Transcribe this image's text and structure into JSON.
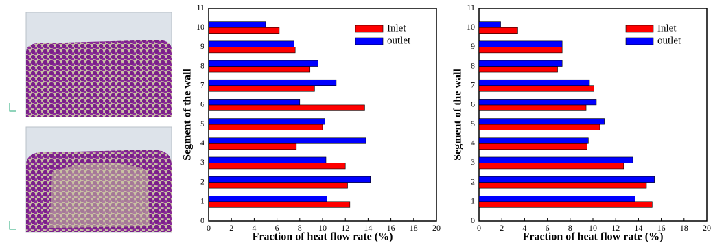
{
  "chart_data": [
    {
      "type": "bar",
      "orientation": "horizontal",
      "x_label": "Fraction of heat flow rate (%)",
      "y_label": "Segment of the wall",
      "y": [
        1,
        2,
        3,
        4,
        5,
        6,
        7,
        8,
        9,
        10
      ],
      "series": [
        {
          "name": "Inlet",
          "color": "#ff0000",
          "values": [
            12.4,
            12.2,
            12.0,
            7.7,
            10.0,
            13.7,
            9.3,
            8.9,
            7.6,
            6.2
          ]
        },
        {
          "name": "outlet",
          "color": "#0000ff",
          "values": [
            10.4,
            14.2,
            10.3,
            13.8,
            10.2,
            8.0,
            11.2,
            9.6,
            7.5,
            5.0
          ]
        }
      ],
      "xlim": [
        0,
        20
      ],
      "xticks": [
        0,
        2,
        4,
        6,
        8,
        10,
        12,
        14,
        16,
        18,
        20
      ],
      "ylim": [
        0,
        11
      ],
      "yticks": [
        0,
        1,
        2,
        3,
        4,
        5,
        6,
        7,
        8,
        9,
        10,
        11
      ],
      "legend": "upper right",
      "grid": false
    },
    {
      "type": "bar",
      "orientation": "horizontal",
      "x_label": "Fraction of heat flow rate (%)",
      "y_label": "Segment of the wall",
      "y": [
        1,
        2,
        3,
        4,
        5,
        6,
        7,
        8,
        9,
        10
      ],
      "series": [
        {
          "name": "Inlet",
          "color": "#ff0000",
          "values": [
            15.2,
            14.7,
            12.7,
            9.5,
            10.6,
            9.4,
            10.1,
            6.9,
            7.3,
            3.4
          ]
        },
        {
          "name": "outlet",
          "color": "#0000ff",
          "values": [
            13.7,
            15.4,
            13.5,
            9.6,
            11.0,
            10.3,
            9.7,
            7.3,
            7.3,
            1.9
          ]
        }
      ],
      "xlim": [
        0,
        20
      ],
      "xticks": [
        0,
        2,
        4,
        6,
        8,
        10,
        12,
        14,
        16,
        18,
        20
      ],
      "ylim": [
        0,
        11
      ],
      "yticks": [
        0,
        1,
        2,
        3,
        4,
        5,
        6,
        7,
        8,
        9,
        10,
        11
      ],
      "legend": "upper right",
      "grid": false
    }
  ]
}
